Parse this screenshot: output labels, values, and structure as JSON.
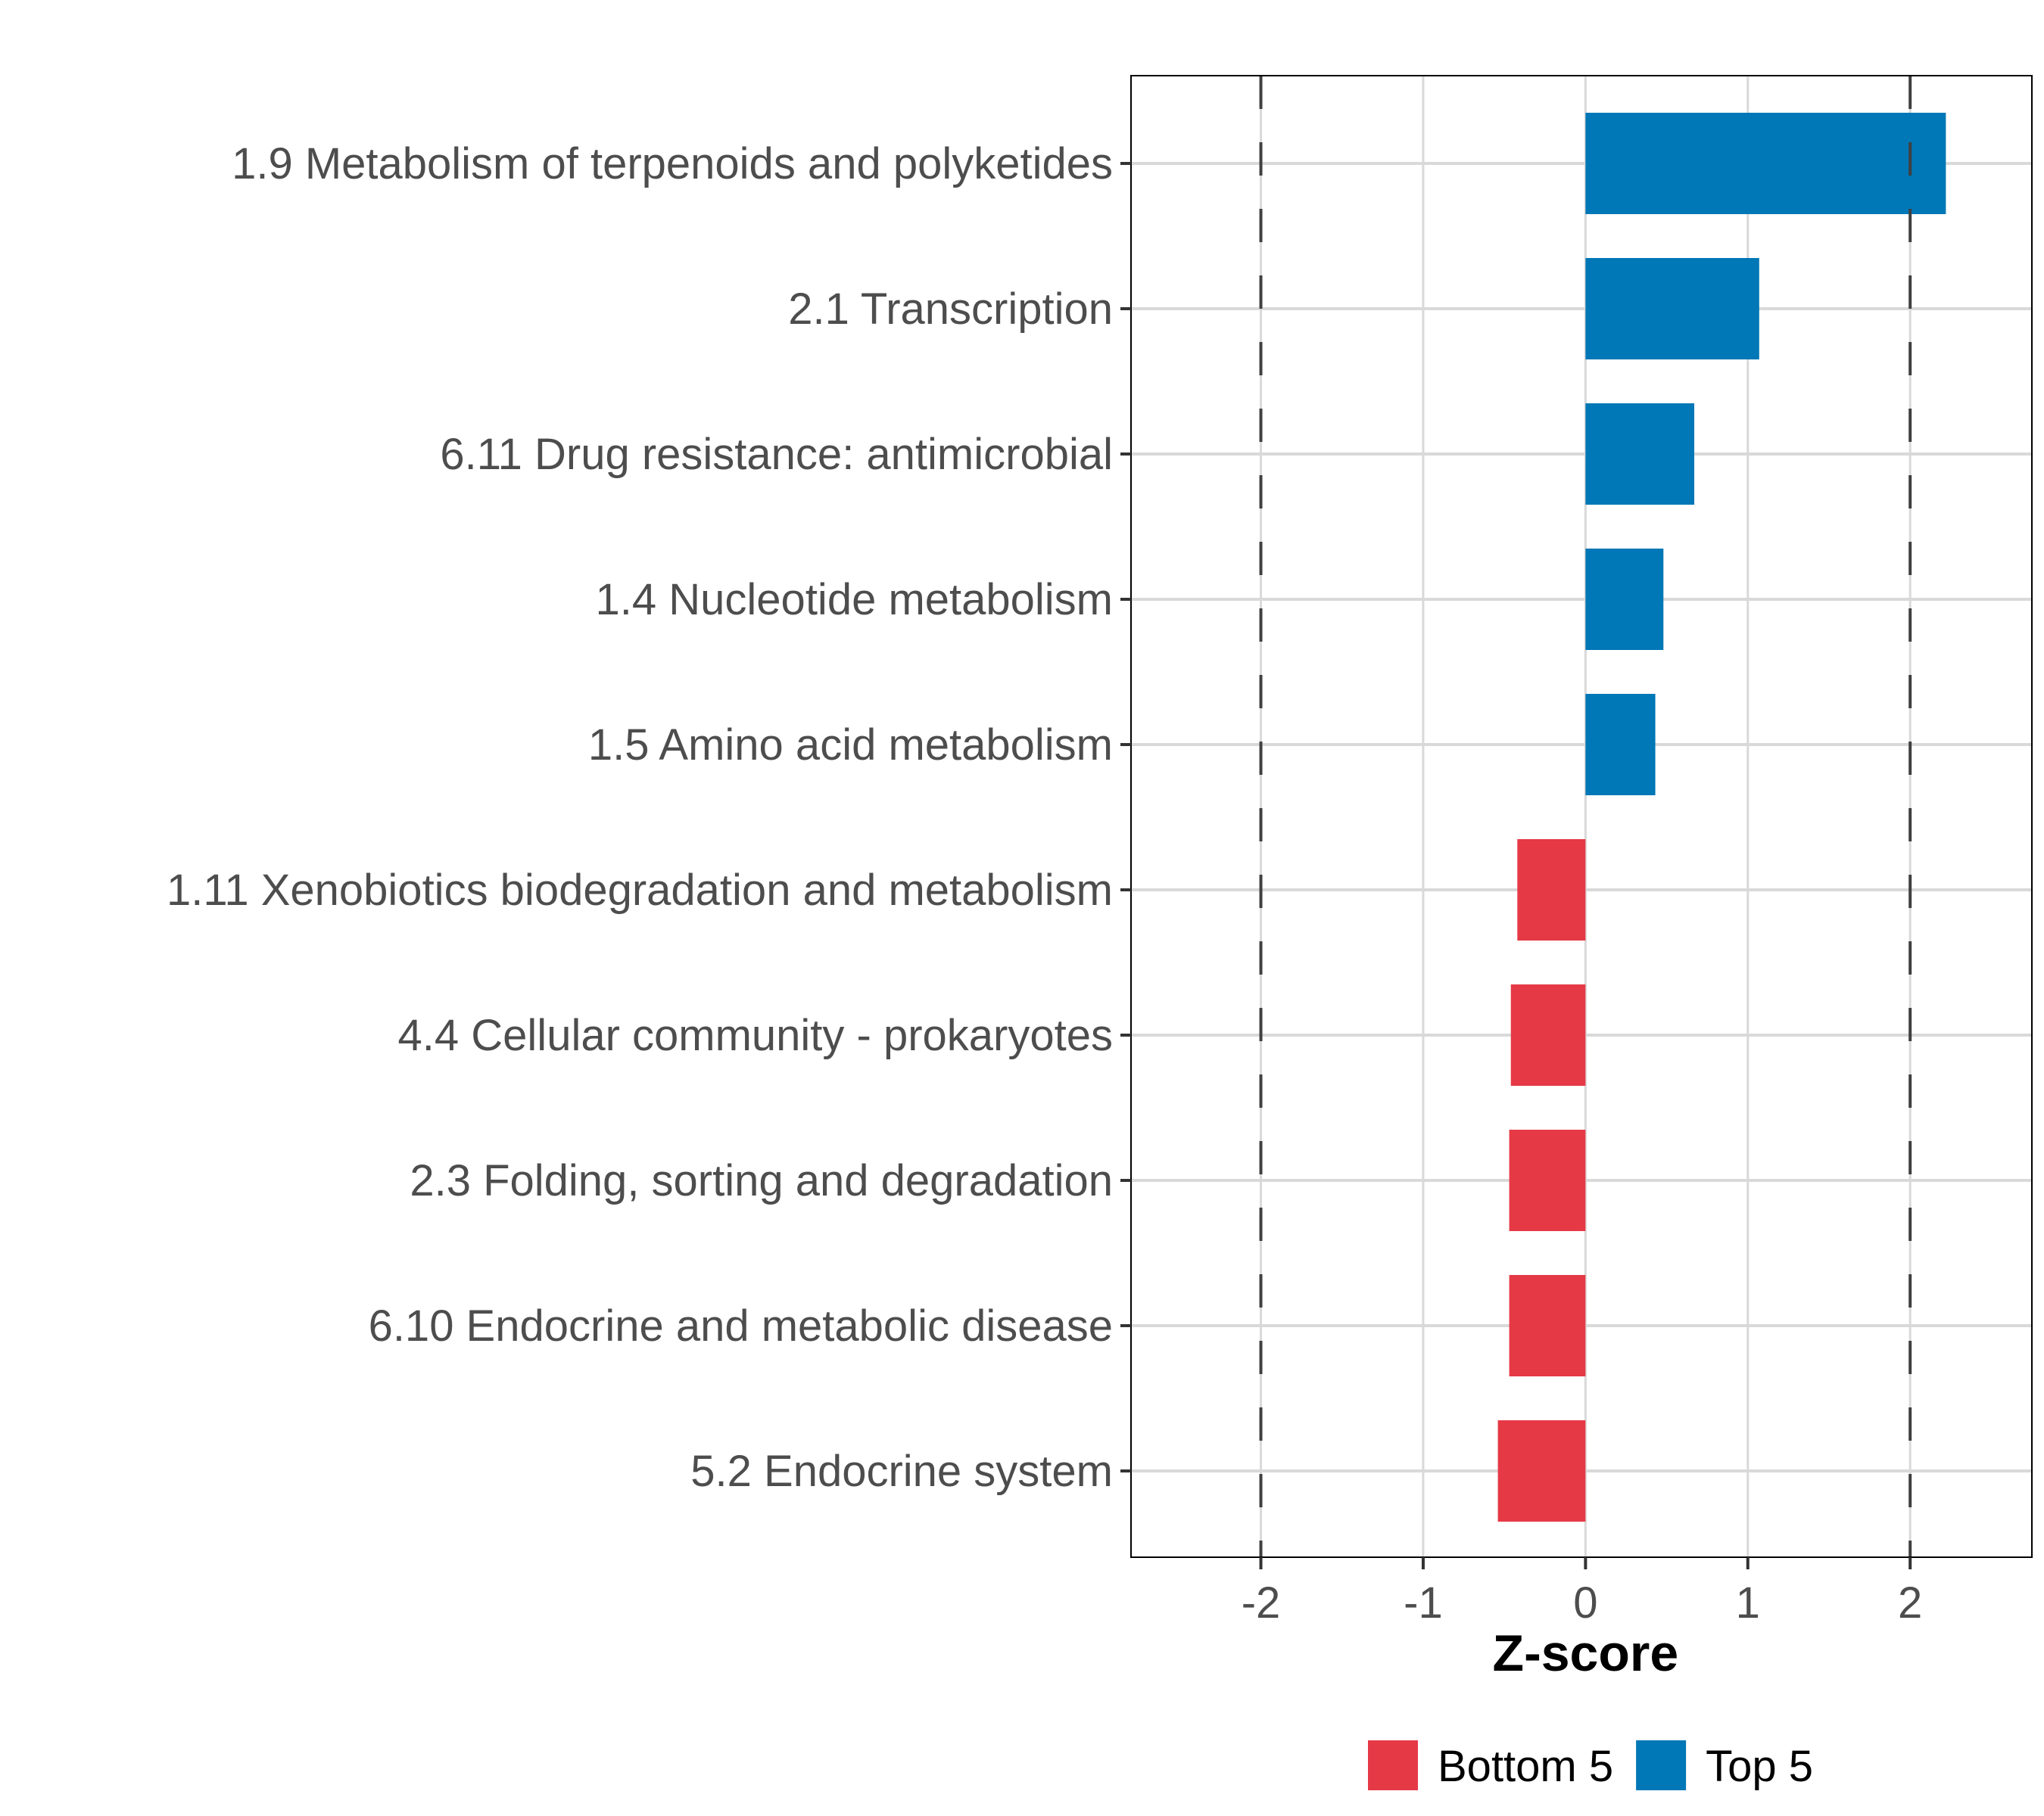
{
  "chart_data": {
    "type": "bar",
    "orientation": "horizontal",
    "title": "",
    "xlabel": "Z-score",
    "ylabel": "",
    "xlim": [
      -2.8,
      2.75
    ],
    "xticks": [
      -2,
      -1,
      0,
      1,
      2
    ],
    "xtick_labels": [
      "-2",
      "-1",
      "0",
      "1",
      "2"
    ],
    "reference_lines": [
      -2,
      2
    ],
    "grid": true,
    "legend_position": "bottom",
    "categories": [
      "1.9 Metabolism of terpenoids and polyketides",
      "2.1 Transcription",
      "6.11 Drug resistance: antimicrobial",
      "1.4 Nucleotide metabolism",
      "1.5 Amino acid metabolism",
      "1.11 Xenobiotics biodegradation and metabolism",
      "4.4 Cellular community - prokaryotes",
      "2.3 Folding, sorting and degradation",
      "6.10 Endocrine and metabolic disease",
      "5.2 Endocrine system"
    ],
    "values": [
      2.22,
      1.07,
      0.67,
      0.48,
      0.43,
      -0.42,
      -0.46,
      -0.47,
      -0.47,
      -0.54
    ],
    "groups": [
      "Top 5",
      "Top 5",
      "Top 5",
      "Top 5",
      "Top 5",
      "Bottom 5",
      "Bottom 5",
      "Bottom 5",
      "Bottom 5",
      "Bottom 5"
    ],
    "legend": [
      {
        "label": "Bottom 5",
        "color": "#E63946"
      },
      {
        "label": "Top 5",
        "color": "#0077B6"
      }
    ]
  }
}
